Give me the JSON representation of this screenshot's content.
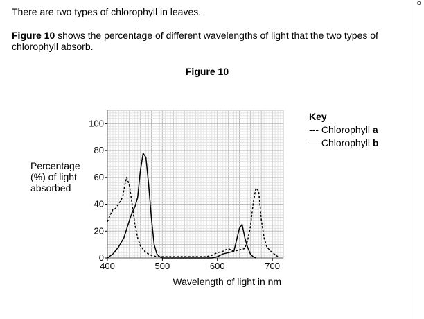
{
  "intro": "There are two types of chlorophyll in leaves.",
  "description": {
    "bold": "Figure 10",
    "rest": " shows the percentage of different wavelengths of light that the two types of chlorophyll absorb."
  },
  "corner_mark": "O",
  "chart_data": {
    "type": "line",
    "title": "Figure 10",
    "xlabel": "Wavelength of light in nm",
    "ylabel_lines": [
      "Percentage",
      "(%) of light",
      "absorbed"
    ],
    "xlim": [
      400,
      720
    ],
    "ylim": [
      0,
      110
    ],
    "x_ticks": [
      400,
      500,
      600,
      700
    ],
    "y_ticks": [
      0,
      20,
      40,
      60,
      80,
      100
    ],
    "grid": true,
    "legend": {
      "title": "Key",
      "position": "right",
      "entries": [
        {
          "symbol": "---",
          "label": "Chlorophyll ",
          "suffix": "a"
        },
        {
          "symbol": "—",
          "label": "Chlorophyll ",
          "suffix": "b"
        }
      ]
    },
    "series": [
      {
        "name": "Chlorophyll a",
        "style": "dashed",
        "x": [
          400,
          405,
          410,
          415,
          420,
          425,
          428,
          432,
          435,
          440,
          445,
          450,
          455,
          460,
          470,
          480,
          490,
          500,
          520,
          540,
          560,
          580,
          590,
          600,
          610,
          620,
          630,
          640,
          650,
          655,
          660,
          665,
          670,
          675,
          680,
          685,
          690,
          700,
          710
        ],
        "y": [
          27,
          32,
          36,
          37,
          40,
          43,
          46,
          55,
          60,
          54,
          40,
          25,
          15,
          9,
          4,
          2,
          1,
          1,
          1,
          1,
          1,
          1,
          2,
          4,
          5,
          7,
          5,
          6,
          7,
          13,
          23,
          40,
          52,
          50,
          28,
          15,
          8,
          4,
          1
        ]
      },
      {
        "name": "Chlorophyll b",
        "style": "solid",
        "x": [
          400,
          410,
          420,
          430,
          440,
          445,
          450,
          455,
          460,
          465,
          470,
          475,
          480,
          485,
          490,
          495,
          500,
          520,
          540,
          560,
          580,
          590,
          600,
          610,
          620,
          630,
          640,
          645,
          650,
          655,
          660,
          665,
          670
        ],
        "y": [
          0,
          3,
          8,
          15,
          28,
          34,
          38,
          45,
          65,
          78,
          75,
          55,
          30,
          10,
          3,
          1,
          0,
          0,
          0,
          0,
          0,
          0,
          1,
          3,
          4,
          5,
          22,
          25,
          15,
          8,
          3,
          1,
          0
        ]
      }
    ]
  }
}
